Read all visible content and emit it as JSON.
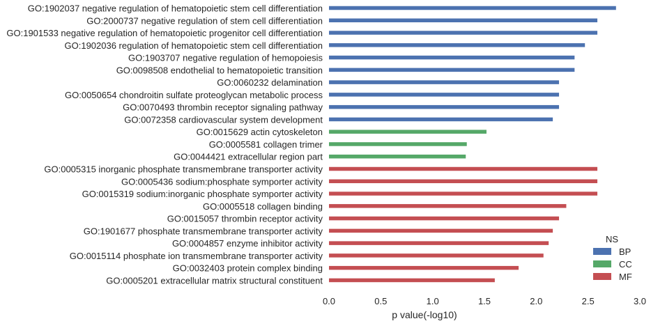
{
  "chart_data": {
    "type": "bar",
    "orientation": "horizontal",
    "xlabel": "p value(-log10)",
    "xlim": [
      0,
      3.0
    ],
    "xticks": [
      "0.0",
      "0.5",
      "1.0",
      "1.5",
      "2.0",
      "2.5",
      "3.0"
    ],
    "grid": false,
    "legend": {
      "title": "NS",
      "placement": "bottom-right",
      "entries": [
        {
          "name": "BP",
          "color": "#4c72b0"
        },
        {
          "name": "CC",
          "color": "#55a868"
        },
        {
          "name": "MF",
          "color": "#c44e52"
        }
      ]
    },
    "categories": [
      "GO:1902037 negative regulation of hematopoietic stem cell differentiation",
      "GO:2000737 negative regulation of stem cell differentiation",
      "GO:1901533 negative regulation of hematopoietic progenitor cell differentiation",
      "GO:1902036 regulation of hematopoietic stem cell differentiation",
      "GO:1903707 negative regulation of hemopoiesis",
      "GO:0098508 endothelial to hematopoietic transition",
      "GO:0060232 delamination",
      "GO:0050654 chondroitin sulfate proteoglycan metabolic process",
      "GO:0070493 thrombin receptor signaling pathway",
      "GO:0072358 cardiovascular system development",
      "GO:0015629 actin cytoskeleton",
      "GO:0005581 collagen trimer",
      "GO:0044421 extracellular region part",
      "GO:0005315 inorganic phosphate transmembrane transporter activity",
      "GO:0005436 sodium:phosphate symporter activity",
      "GO:0015319 sodium:inorganic phosphate symporter activity",
      "GO:0005518 collagen binding",
      "GO:0015057 thrombin receptor activity",
      "GO:1901677 phosphate transmembrane transporter activity",
      "GO:0004857 enzyme inhibitor activity",
      "GO:0015114 phosphate ion transmembrane transporter activity",
      "GO:0032403 protein complex binding",
      "GO:0005201 extracellular matrix structural constituent"
    ],
    "values": [
      2.77,
      2.59,
      2.59,
      2.47,
      2.37,
      2.37,
      2.22,
      2.22,
      2.22,
      2.16,
      1.52,
      1.33,
      1.32,
      2.59,
      2.59,
      2.59,
      2.29,
      2.22,
      2.16,
      2.12,
      2.07,
      1.83,
      1.6
    ],
    "groups": [
      "BP",
      "BP",
      "BP",
      "BP",
      "BP",
      "BP",
      "BP",
      "BP",
      "BP",
      "BP",
      "CC",
      "CC",
      "CC",
      "MF",
      "MF",
      "MF",
      "MF",
      "MF",
      "MF",
      "MF",
      "MF",
      "MF",
      "MF"
    ]
  }
}
